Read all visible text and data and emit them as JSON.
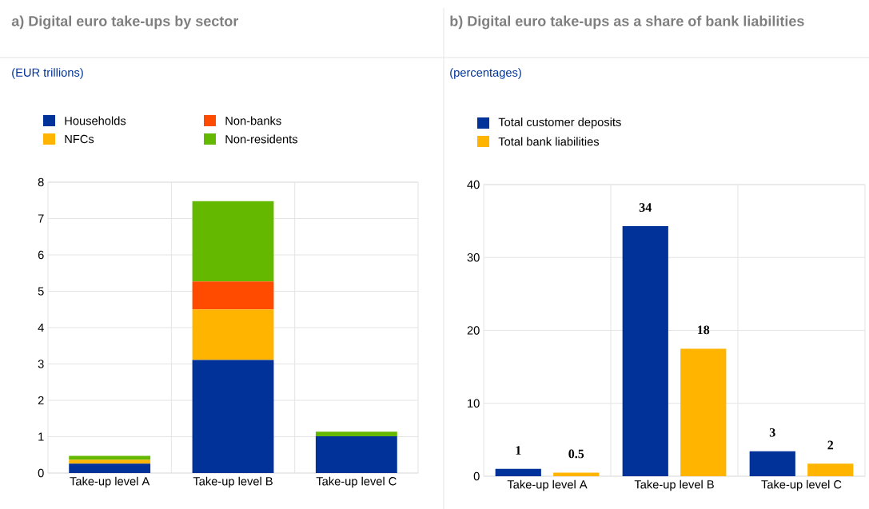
{
  "chart_data": [
    {
      "type": "bar",
      "title": "a) Digital euro take-ups by sector",
      "subtitle": "(EUR trillions)",
      "stacked": true,
      "legend": "top",
      "grid": true,
      "categories": [
        "Take-up level A",
        "Take-up level B",
        "Take-up level C"
      ],
      "series": [
        {
          "name": "Households",
          "color": "#003299",
          "values": [
            0.26,
            3.11,
            1.01
          ]
        },
        {
          "name": "NFCs",
          "color": "#ffb400",
          "values": [
            0.1,
            1.39,
            0
          ]
        },
        {
          "name": "Non-banks",
          "color": "#ff4b00",
          "values": [
            0,
            0.77,
            0
          ]
        },
        {
          "name": "Non-residents",
          "color": "#65b800",
          "values": [
            0.11,
            2.21,
            0.13
          ]
        }
      ],
      "ylim": [
        0,
        8
      ],
      "yticks": [
        0,
        1,
        2,
        3,
        4,
        5,
        6,
        7,
        8
      ]
    },
    {
      "type": "bar",
      "title": "b) Digital euro take-ups as a share of bank liabilities",
      "subtitle": "(percentages)",
      "legend": "top",
      "grid": true,
      "categories": [
        "Take-up level A",
        "Take-up level B",
        "Take-up level C"
      ],
      "series": [
        {
          "name": "Total customer deposits",
          "color": "#003299",
          "values": [
            1,
            34.3,
            3.43
          ],
          "value_labels": [
            "1",
            "34",
            "3"
          ]
        },
        {
          "name": "Total bank liabilities",
          "color": "#ffb400",
          "values": [
            0.5,
            17.5,
            1.73
          ],
          "value_labels": [
            "0.5",
            "18",
            "2"
          ]
        }
      ],
      "ylim": [
        0,
        40
      ],
      "yticks": [
        0,
        10,
        20,
        30,
        40
      ]
    }
  ]
}
